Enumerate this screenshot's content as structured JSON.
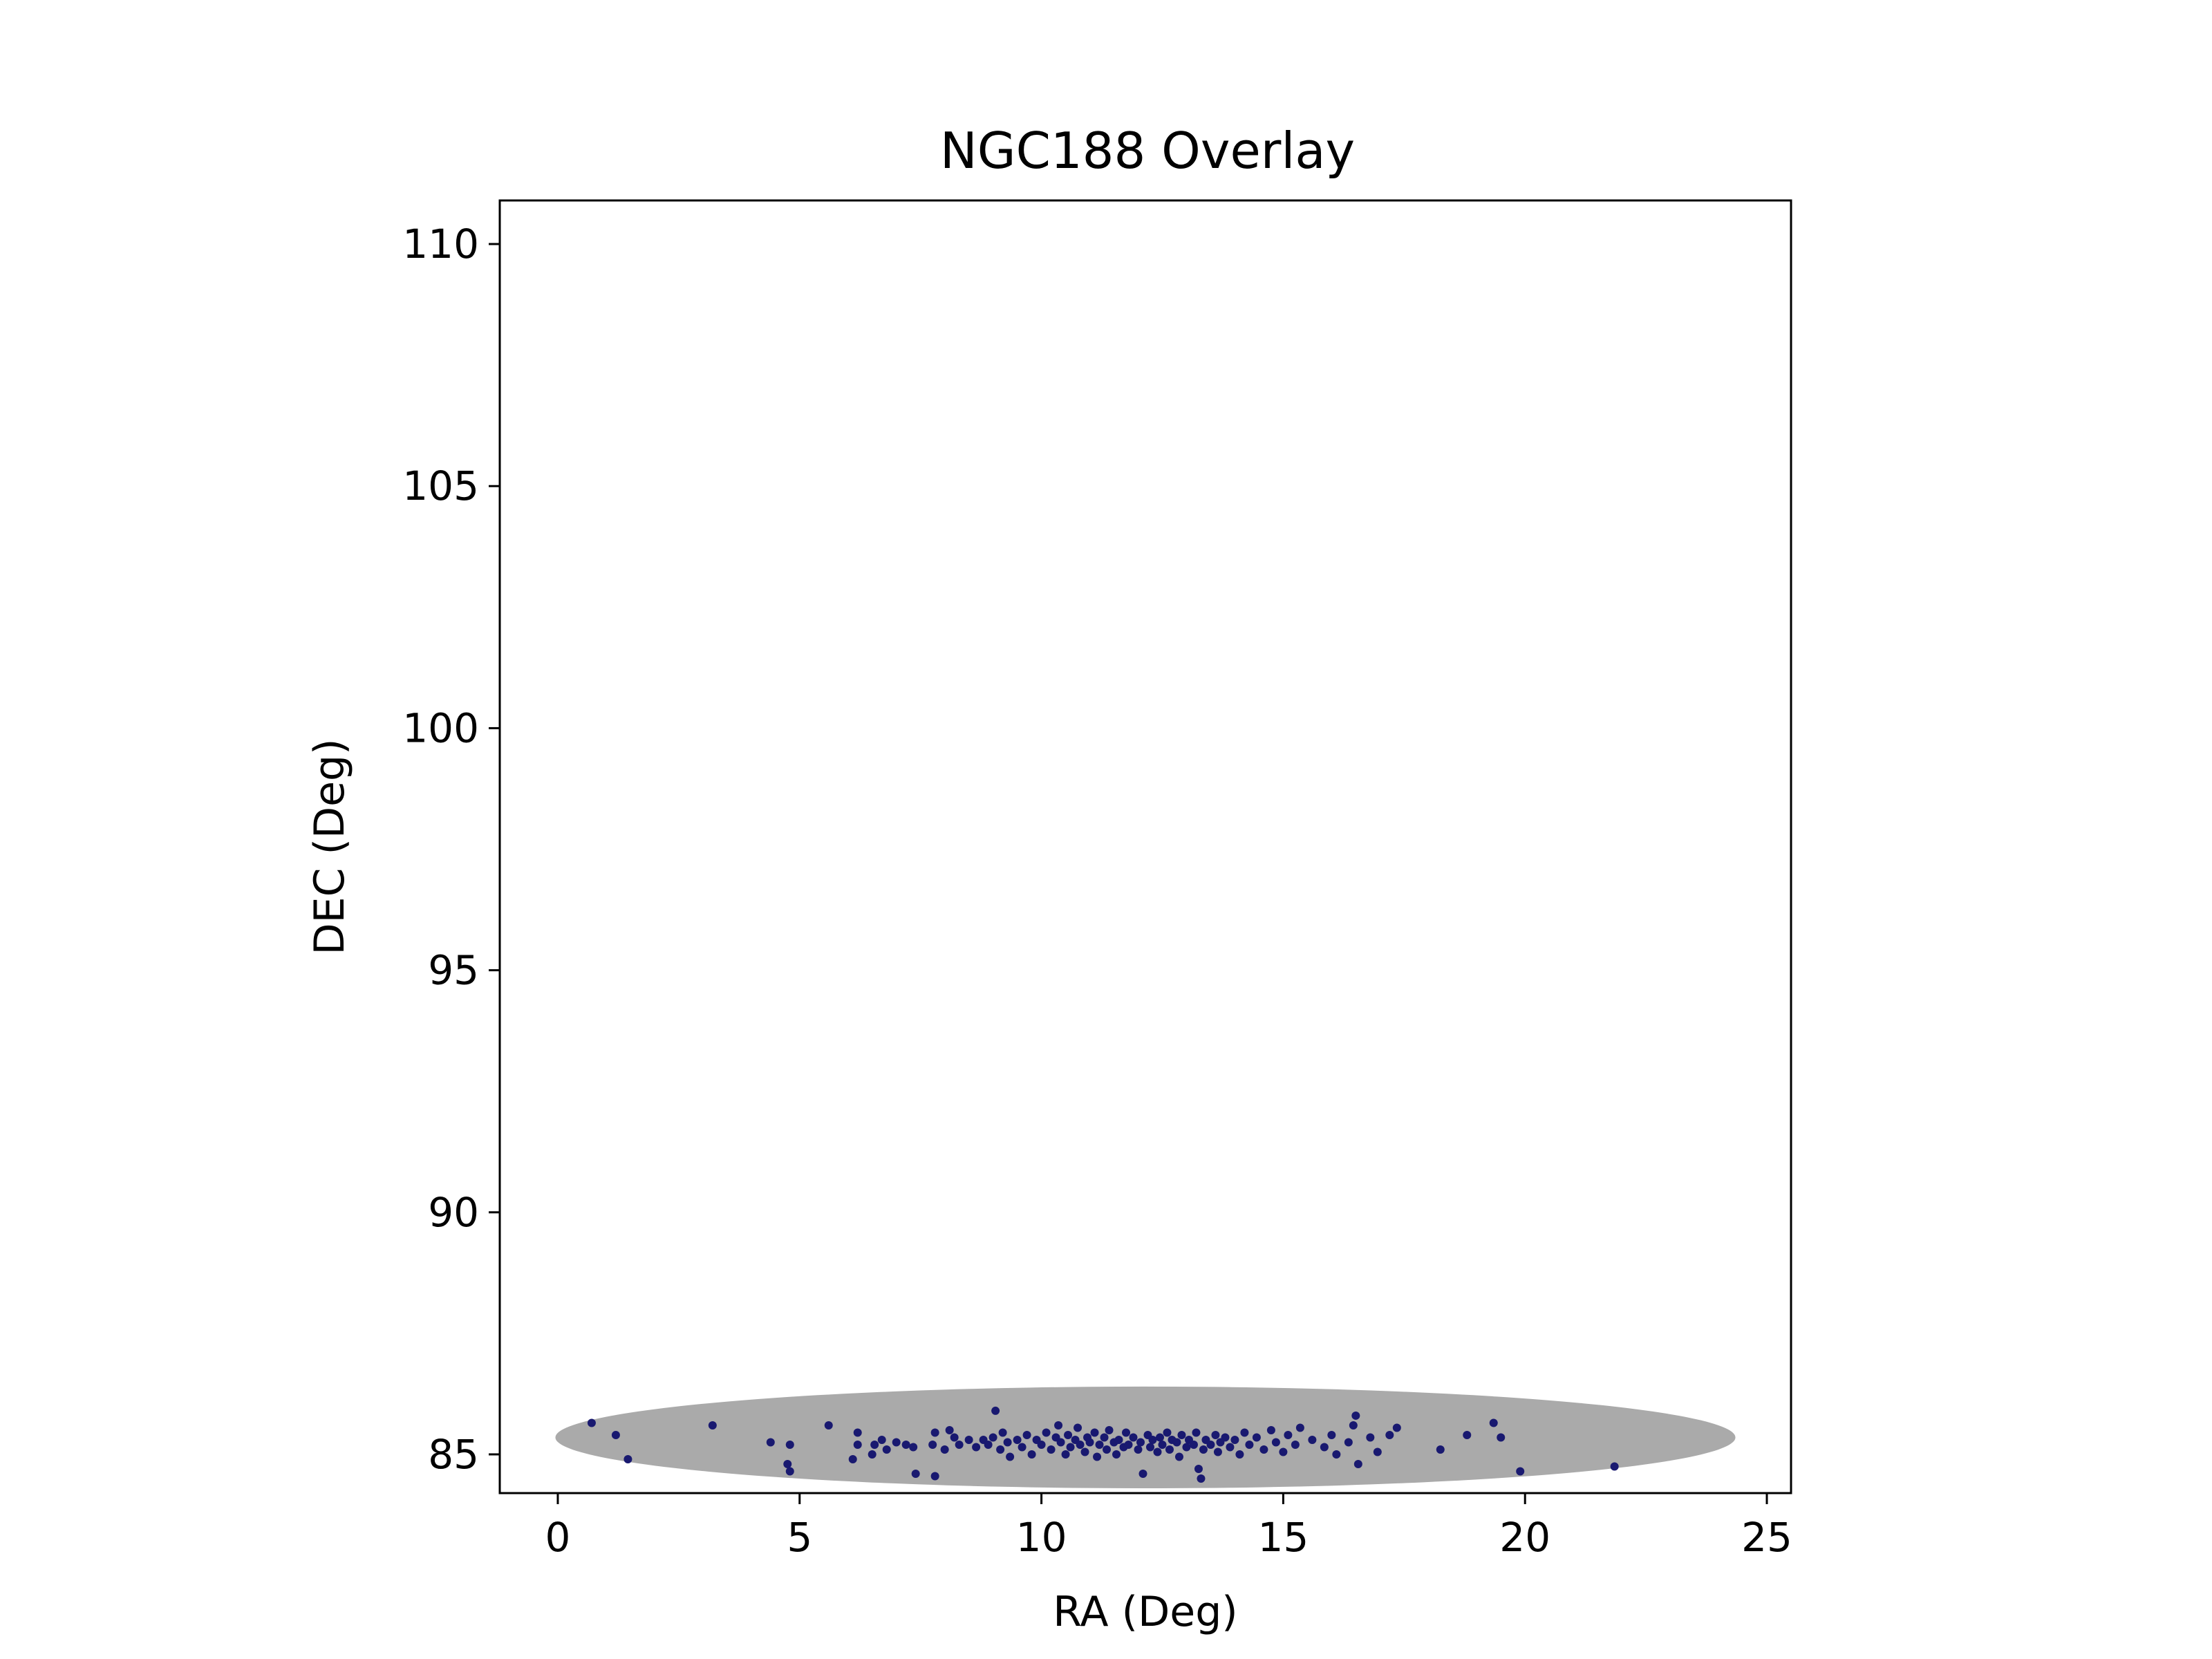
{
  "chart_data": {
    "type": "scatter",
    "title": "NGC188 Overlay",
    "xlabel": "RA (Deg)",
    "ylabel": "DEC (Deg)",
    "xlim": [
      -1.2,
      25.5
    ],
    "ylim": [
      84.2,
      110.9
    ],
    "xticks": [
      0,
      5,
      10,
      15,
      20,
      25
    ],
    "yticks": [
      85,
      90,
      95,
      100,
      105,
      110
    ],
    "grid": false,
    "legend": "none",
    "background_region": {
      "shape": "ellipse",
      "color": "#aaaaaa",
      "center": [
        12.15,
        85.35
      ],
      "radius_x": 12.2,
      "radius_y": 1.05
    },
    "series": [
      {
        "color": "#191970",
        "points": [
          [
            0.7,
            85.65
          ],
          [
            1.2,
            85.4
          ],
          [
            1.45,
            84.9
          ],
          [
            3.2,
            85.6
          ],
          [
            4.4,
            85.25
          ],
          [
            4.8,
            85.2
          ],
          [
            4.75,
            84.8
          ],
          [
            4.8,
            84.65
          ],
          [
            5.6,
            85.6
          ],
          [
            6.1,
            84.9
          ],
          [
            6.2,
            85.2
          ],
          [
            6.2,
            85.45
          ],
          [
            6.5,
            85.0
          ],
          [
            6.55,
            85.2
          ],
          [
            6.7,
            85.3
          ],
          [
            6.8,
            85.1
          ],
          [
            7.0,
            85.25
          ],
          [
            7.2,
            85.2
          ],
          [
            7.35,
            85.15
          ],
          [
            7.4,
            84.6
          ],
          [
            7.75,
            85.2
          ],
          [
            7.8,
            85.45
          ],
          [
            7.8,
            84.55
          ],
          [
            8.0,
            85.1
          ],
          [
            8.1,
            85.5
          ],
          [
            8.2,
            85.35
          ],
          [
            8.3,
            85.2
          ],
          [
            8.5,
            85.3
          ],
          [
            8.65,
            85.15
          ],
          [
            8.8,
            85.3
          ],
          [
            8.9,
            85.2
          ],
          [
            9.0,
            85.35
          ],
          [
            9.05,
            85.9
          ],
          [
            9.15,
            85.1
          ],
          [
            9.2,
            85.45
          ],
          [
            9.3,
            85.25
          ],
          [
            9.35,
            84.95
          ],
          [
            9.5,
            85.3
          ],
          [
            9.6,
            85.15
          ],
          [
            9.7,
            85.4
          ],
          [
            9.8,
            85.0
          ],
          [
            9.9,
            85.3
          ],
          [
            10.0,
            85.2
          ],
          [
            10.1,
            85.45
          ],
          [
            10.2,
            85.1
          ],
          [
            10.3,
            85.35
          ],
          [
            10.35,
            85.6
          ],
          [
            10.4,
            85.25
          ],
          [
            10.5,
            85.0
          ],
          [
            10.55,
            85.4
          ],
          [
            10.6,
            85.15
          ],
          [
            10.7,
            85.3
          ],
          [
            10.75,
            85.55
          ],
          [
            10.8,
            85.2
          ],
          [
            10.9,
            85.05
          ],
          [
            10.95,
            85.35
          ],
          [
            11.0,
            85.25
          ],
          [
            11.1,
            85.45
          ],
          [
            11.15,
            84.95
          ],
          [
            11.2,
            85.2
          ],
          [
            11.3,
            85.35
          ],
          [
            11.35,
            85.1
          ],
          [
            11.4,
            85.5
          ],
          [
            11.5,
            85.25
          ],
          [
            11.55,
            85.0
          ],
          [
            11.6,
            85.3
          ],
          [
            11.7,
            85.15
          ],
          [
            11.75,
            85.45
          ],
          [
            11.8,
            85.2
          ],
          [
            11.9,
            85.35
          ],
          [
            12.0,
            85.1
          ],
          [
            12.05,
            85.25
          ],
          [
            12.1,
            84.6
          ],
          [
            12.2,
            85.4
          ],
          [
            12.25,
            85.15
          ],
          [
            12.3,
            85.3
          ],
          [
            12.4,
            85.05
          ],
          [
            12.45,
            85.35
          ],
          [
            12.5,
            85.2
          ],
          [
            12.6,
            85.45
          ],
          [
            12.65,
            85.1
          ],
          [
            12.7,
            85.3
          ],
          [
            12.8,
            85.25
          ],
          [
            12.85,
            84.95
          ],
          [
            12.9,
            85.4
          ],
          [
            13.0,
            85.15
          ],
          [
            13.05,
            85.3
          ],
          [
            13.15,
            85.2
          ],
          [
            13.2,
            85.45
          ],
          [
            13.25,
            84.7
          ],
          [
            13.3,
            84.5
          ],
          [
            13.35,
            85.1
          ],
          [
            13.4,
            85.3
          ],
          [
            13.5,
            85.2
          ],
          [
            13.6,
            85.4
          ],
          [
            13.65,
            85.05
          ],
          [
            13.7,
            85.25
          ],
          [
            13.8,
            85.35
          ],
          [
            13.9,
            85.15
          ],
          [
            14.0,
            85.3
          ],
          [
            14.1,
            85.0
          ],
          [
            14.2,
            85.45
          ],
          [
            14.3,
            85.2
          ],
          [
            14.45,
            85.35
          ],
          [
            14.6,
            85.1
          ],
          [
            14.75,
            85.5
          ],
          [
            14.85,
            85.25
          ],
          [
            15.0,
            85.05
          ],
          [
            15.1,
            85.4
          ],
          [
            15.25,
            85.2
          ],
          [
            15.35,
            85.55
          ],
          [
            15.6,
            85.3
          ],
          [
            15.85,
            85.15
          ],
          [
            16.0,
            85.4
          ],
          [
            16.1,
            85.0
          ],
          [
            16.35,
            85.25
          ],
          [
            16.45,
            85.6
          ],
          [
            16.5,
            85.8
          ],
          [
            16.55,
            84.8
          ],
          [
            16.8,
            85.35
          ],
          [
            16.95,
            85.05
          ],
          [
            17.2,
            85.4
          ],
          [
            17.35,
            85.55
          ],
          [
            18.25,
            85.1
          ],
          [
            18.8,
            85.4
          ],
          [
            19.35,
            85.65
          ],
          [
            19.5,
            85.35
          ],
          [
            19.9,
            84.65
          ],
          [
            21.85,
            84.75
          ]
        ]
      }
    ]
  }
}
